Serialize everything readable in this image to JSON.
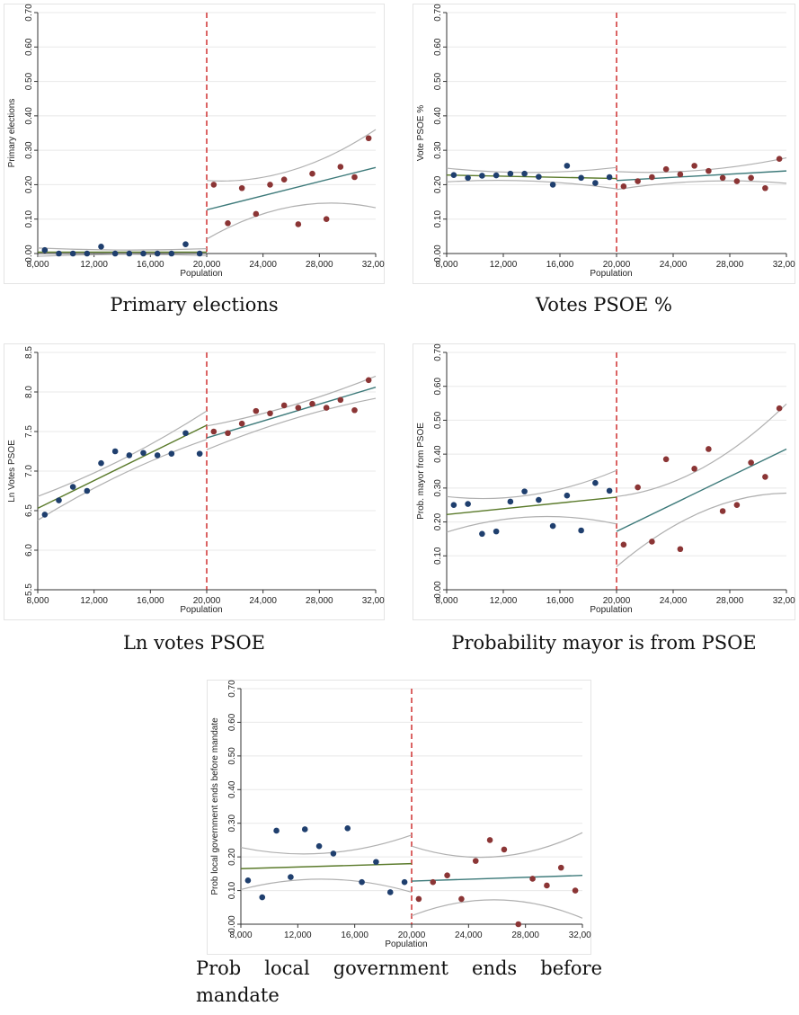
{
  "captions": {
    "primary": "Primary elections",
    "votes": "Votes PSOE %",
    "ln": "Ln votes PSOE",
    "prob_mayor": "Probability mayor is from PSOE",
    "prob_local": "Prob local government ends before mandate"
  },
  "colors": {
    "left_points": "#1f3f6e",
    "right_points": "#8b3535",
    "fit_left": "#5a7a2a",
    "fit_right": "#3d7a7a",
    "ci": "#b0b0b0",
    "cutoff": "#cc2222"
  },
  "chart_data": [
    {
      "id": "primary",
      "type": "scatter",
      "ylabel": "Primary elections",
      "xlabel": "Population",
      "xlim": [
        8000,
        32000
      ],
      "ylim": [
        0,
        0.7
      ],
      "cutoff": 20000,
      "xticks": [
        8000,
        12000,
        16000,
        20000,
        24000,
        28000,
        32000
      ],
      "xtick_labels": [
        "8,000",
        "12,000",
        "16,000",
        "20,000",
        "24,000",
        "28,000",
        "32,000"
      ],
      "yticks": [
        0,
        0.1,
        0.2,
        0.3,
        0.4,
        0.5,
        0.6,
        0.7
      ],
      "ytick_labels": [
        "0.00",
        "0.10",
        "0.20",
        "0.30",
        "0.40",
        "0.50",
        "0.60",
        "0.70"
      ],
      "left": {
        "x": [
          8500,
          9500,
          10500,
          11500,
          12500,
          13500,
          14500,
          15500,
          16500,
          17500,
          18500,
          19500
        ],
        "y": [
          0.01,
          0,
          0,
          0,
          0.02,
          0,
          0,
          0,
          0,
          0,
          0.027,
          0
        ],
        "fit": [
          0.004,
          0.004
        ],
        "ci_upper": [
          0.016,
          0.014
        ],
        "ci_lower": [
          -0.008,
          -0.006
        ]
      },
      "right": {
        "x": [
          20500,
          21500,
          22500,
          23500,
          24500,
          25500,
          26500,
          27500,
          28500,
          29500,
          30500,
          31500
        ],
        "y": [
          0.2,
          0.088,
          0.19,
          0.115,
          0.2,
          0.215,
          0.085,
          0.232,
          0.1,
          0.252,
          0.222,
          0.335
        ],
        "fit": [
          0.127,
          0.25
        ],
        "ci_upper": [
          0.212,
          0.36
        ],
        "ci_lower": [
          0.042,
          0.133
        ]
      }
    },
    {
      "id": "votes",
      "type": "scatter",
      "ylabel": "Vote PSOE %",
      "xlabel": "Population",
      "xlim": [
        8000,
        32000
      ],
      "ylim": [
        0,
        0.7
      ],
      "cutoff": 20000,
      "xticks": [
        8000,
        12000,
        16000,
        20000,
        24000,
        28000,
        32000
      ],
      "xtick_labels": [
        "8,000",
        "12,000",
        "16,000",
        "20,000",
        "24,000",
        "28,000",
        "32,000"
      ],
      "yticks": [
        0,
        0.1,
        0.2,
        0.3,
        0.4,
        0.5,
        0.6,
        0.7
      ],
      "ytick_labels": [
        "0.00",
        "0.10",
        "0.20",
        "0.30",
        "0.40",
        "0.50",
        "0.60",
        "0.70"
      ],
      "left": {
        "x": [
          8500,
          9500,
          10500,
          11500,
          12500,
          13500,
          14500,
          15500,
          16500,
          17500,
          18500,
          19500
        ],
        "y": [
          0.228,
          0.22,
          0.226,
          0.227,
          0.232,
          0.232,
          0.223,
          0.2,
          0.255,
          0.22,
          0.205,
          0.222
        ],
        "fit": [
          0.228,
          0.218
        ],
        "ci_upper": [
          0.248,
          0.25
        ],
        "ci_lower": [
          0.208,
          0.188
        ]
      },
      "right": {
        "x": [
          20500,
          21500,
          22500,
          23500,
          24500,
          25500,
          26500,
          27500,
          28500,
          29500,
          30500,
          31500
        ],
        "y": [
          0.195,
          0.21,
          0.222,
          0.245,
          0.23,
          0.255,
          0.24,
          0.22,
          0.21,
          0.22,
          0.19,
          0.275
        ],
        "fit": [
          0.212,
          0.24
        ],
        "ci_upper": [
          0.238,
          0.278
        ],
        "ci_lower": [
          0.186,
          0.204
        ]
      }
    },
    {
      "id": "ln",
      "type": "scatter",
      "ylabel": "Ln Votes PSOE",
      "xlabel": "Population",
      "xlim": [
        8000,
        32000
      ],
      "ylim": [
        5.5,
        8.5
      ],
      "cutoff": 20000,
      "xticks": [
        8000,
        12000,
        16000,
        20000,
        24000,
        28000,
        32000
      ],
      "xtick_labels": [
        "8,000",
        "12,000",
        "16,000",
        "20,000",
        "24,000",
        "28,000",
        "32,000"
      ],
      "yticks": [
        5.5,
        6,
        6.5,
        7,
        7.5,
        8,
        8.5
      ],
      "ytick_labels": [
        "5.5",
        "6.0",
        "6.5",
        "7.0",
        "7.5",
        "8.0",
        "8.5"
      ],
      "left": {
        "x": [
          8500,
          9500,
          10500,
          11500,
          12500,
          13500,
          14500,
          15500,
          16500,
          17500,
          18500,
          19500
        ],
        "y": [
          6.45,
          6.63,
          6.8,
          6.75,
          7.1,
          7.25,
          7.2,
          7.23,
          7.2,
          7.22,
          7.48,
          7.22
        ],
        "fit": [
          6.53,
          7.58
        ],
        "ci_upper": [
          6.68,
          7.76
        ],
        "ci_lower": [
          6.38,
          7.4
        ]
      },
      "right": {
        "x": [
          20500,
          21500,
          22500,
          23500,
          24500,
          25500,
          26500,
          27500,
          28500,
          29500,
          30500,
          31500
        ],
        "y": [
          7.5,
          7.48,
          7.6,
          7.76,
          7.73,
          7.83,
          7.8,
          7.85,
          7.8,
          7.9,
          7.77,
          8.15
        ],
        "fit": [
          7.42,
          8.06
        ],
        "ci_upper": [
          7.57,
          8.2
        ],
        "ci_lower": [
          7.27,
          7.92
        ]
      }
    },
    {
      "id": "prob_mayor",
      "type": "scatter",
      "ylabel": "Prob. mayor from PSOE",
      "xlabel": "Population",
      "xlim": [
        8000,
        32000
      ],
      "ylim": [
        0,
        0.7
      ],
      "cutoff": 20000,
      "xticks": [
        8000,
        12000,
        16000,
        20000,
        24000,
        28000,
        32000
      ],
      "xtick_labels": [
        "8,000",
        "12,000",
        "16,000",
        "20,000",
        "24,000",
        "28,000",
        "32,000"
      ],
      "yticks": [
        0,
        0.1,
        0.2,
        0.3,
        0.4,
        0.5,
        0.6,
        0.7
      ],
      "ytick_labels": [
        "0.00",
        "0.10",
        "0.20",
        "0.30",
        "0.40",
        "0.50",
        "0.60",
        "0.70"
      ],
      "left": {
        "x": [
          8500,
          9500,
          10500,
          11500,
          12500,
          13500,
          14500,
          15500,
          16500,
          17500,
          18500,
          19500
        ],
        "y": [
          0.25,
          0.253,
          0.165,
          0.172,
          0.26,
          0.29,
          0.265,
          0.188,
          0.278,
          0.175,
          0.315,
          0.292
        ],
        "fit": [
          0.222,
          0.273
        ],
        "ci_upper": [
          0.275,
          0.352
        ],
        "ci_lower": [
          0.17,
          0.194
        ]
      },
      "right": {
        "x": [
          20500,
          21500,
          22500,
          23500,
          24500,
          25500,
          26500,
          27500,
          28500,
          29500,
          30500,
          31500
        ],
        "y": [
          0.133,
          0.302,
          0.142,
          0.385,
          0.12,
          0.357,
          0.415,
          0.232,
          0.25,
          0.375,
          0.333,
          0.535
        ],
        "fit": [
          0.172,
          0.415
        ],
        "ci_upper": [
          0.275,
          0.548
        ],
        "ci_lower": [
          0.068,
          0.285
        ]
      }
    },
    {
      "id": "prob_local",
      "type": "scatter",
      "ylabel": "Prob local government ends before mandate",
      "xlabel": "Population",
      "xlim": [
        8000,
        32000
      ],
      "ylim": [
        0,
        0.7
      ],
      "cutoff": 20000,
      "xticks": [
        8000,
        12000,
        16000,
        20000,
        24000,
        28000,
        32000
      ],
      "xtick_labels": [
        "8,000",
        "12,000",
        "16,000",
        "20,000",
        "24,000",
        "28,000",
        "32,000"
      ],
      "yticks": [
        0,
        0.1,
        0.2,
        0.3,
        0.4,
        0.5,
        0.6,
        0.7
      ],
      "ytick_labels": [
        "0.00",
        "0.10",
        "0.20",
        "0.30",
        "0.40",
        "0.50",
        "0.60",
        "0.70"
      ],
      "left": {
        "x": [
          8500,
          9500,
          10500,
          11500,
          12500,
          13500,
          14500,
          15500,
          16500,
          17500,
          18500,
          19500
        ],
        "y": [
          0.13,
          0.08,
          0.278,
          0.14,
          0.282,
          0.232,
          0.21,
          0.285,
          0.125,
          0.185,
          0.095,
          0.125
        ],
        "fit": [
          0.165,
          0.18
        ],
        "ci_upper": [
          0.228,
          0.265
        ],
        "ci_lower": [
          0.103,
          0.095
        ]
      },
      "right": {
        "x": [
          20500,
          21500,
          22500,
          23500,
          24500,
          25500,
          26500,
          27500,
          28500,
          29500,
          30500,
          31500
        ],
        "y": [
          0.075,
          0.125,
          0.145,
          0.075,
          0.188,
          0.25,
          0.222,
          0,
          0.135,
          0.115,
          0.168,
          0.1
        ],
        "fit": [
          0.128,
          0.145
        ],
        "ci_upper": [
          0.232,
          0.272
        ],
        "ci_lower": [
          0.025,
          0.018
        ]
      }
    }
  ]
}
